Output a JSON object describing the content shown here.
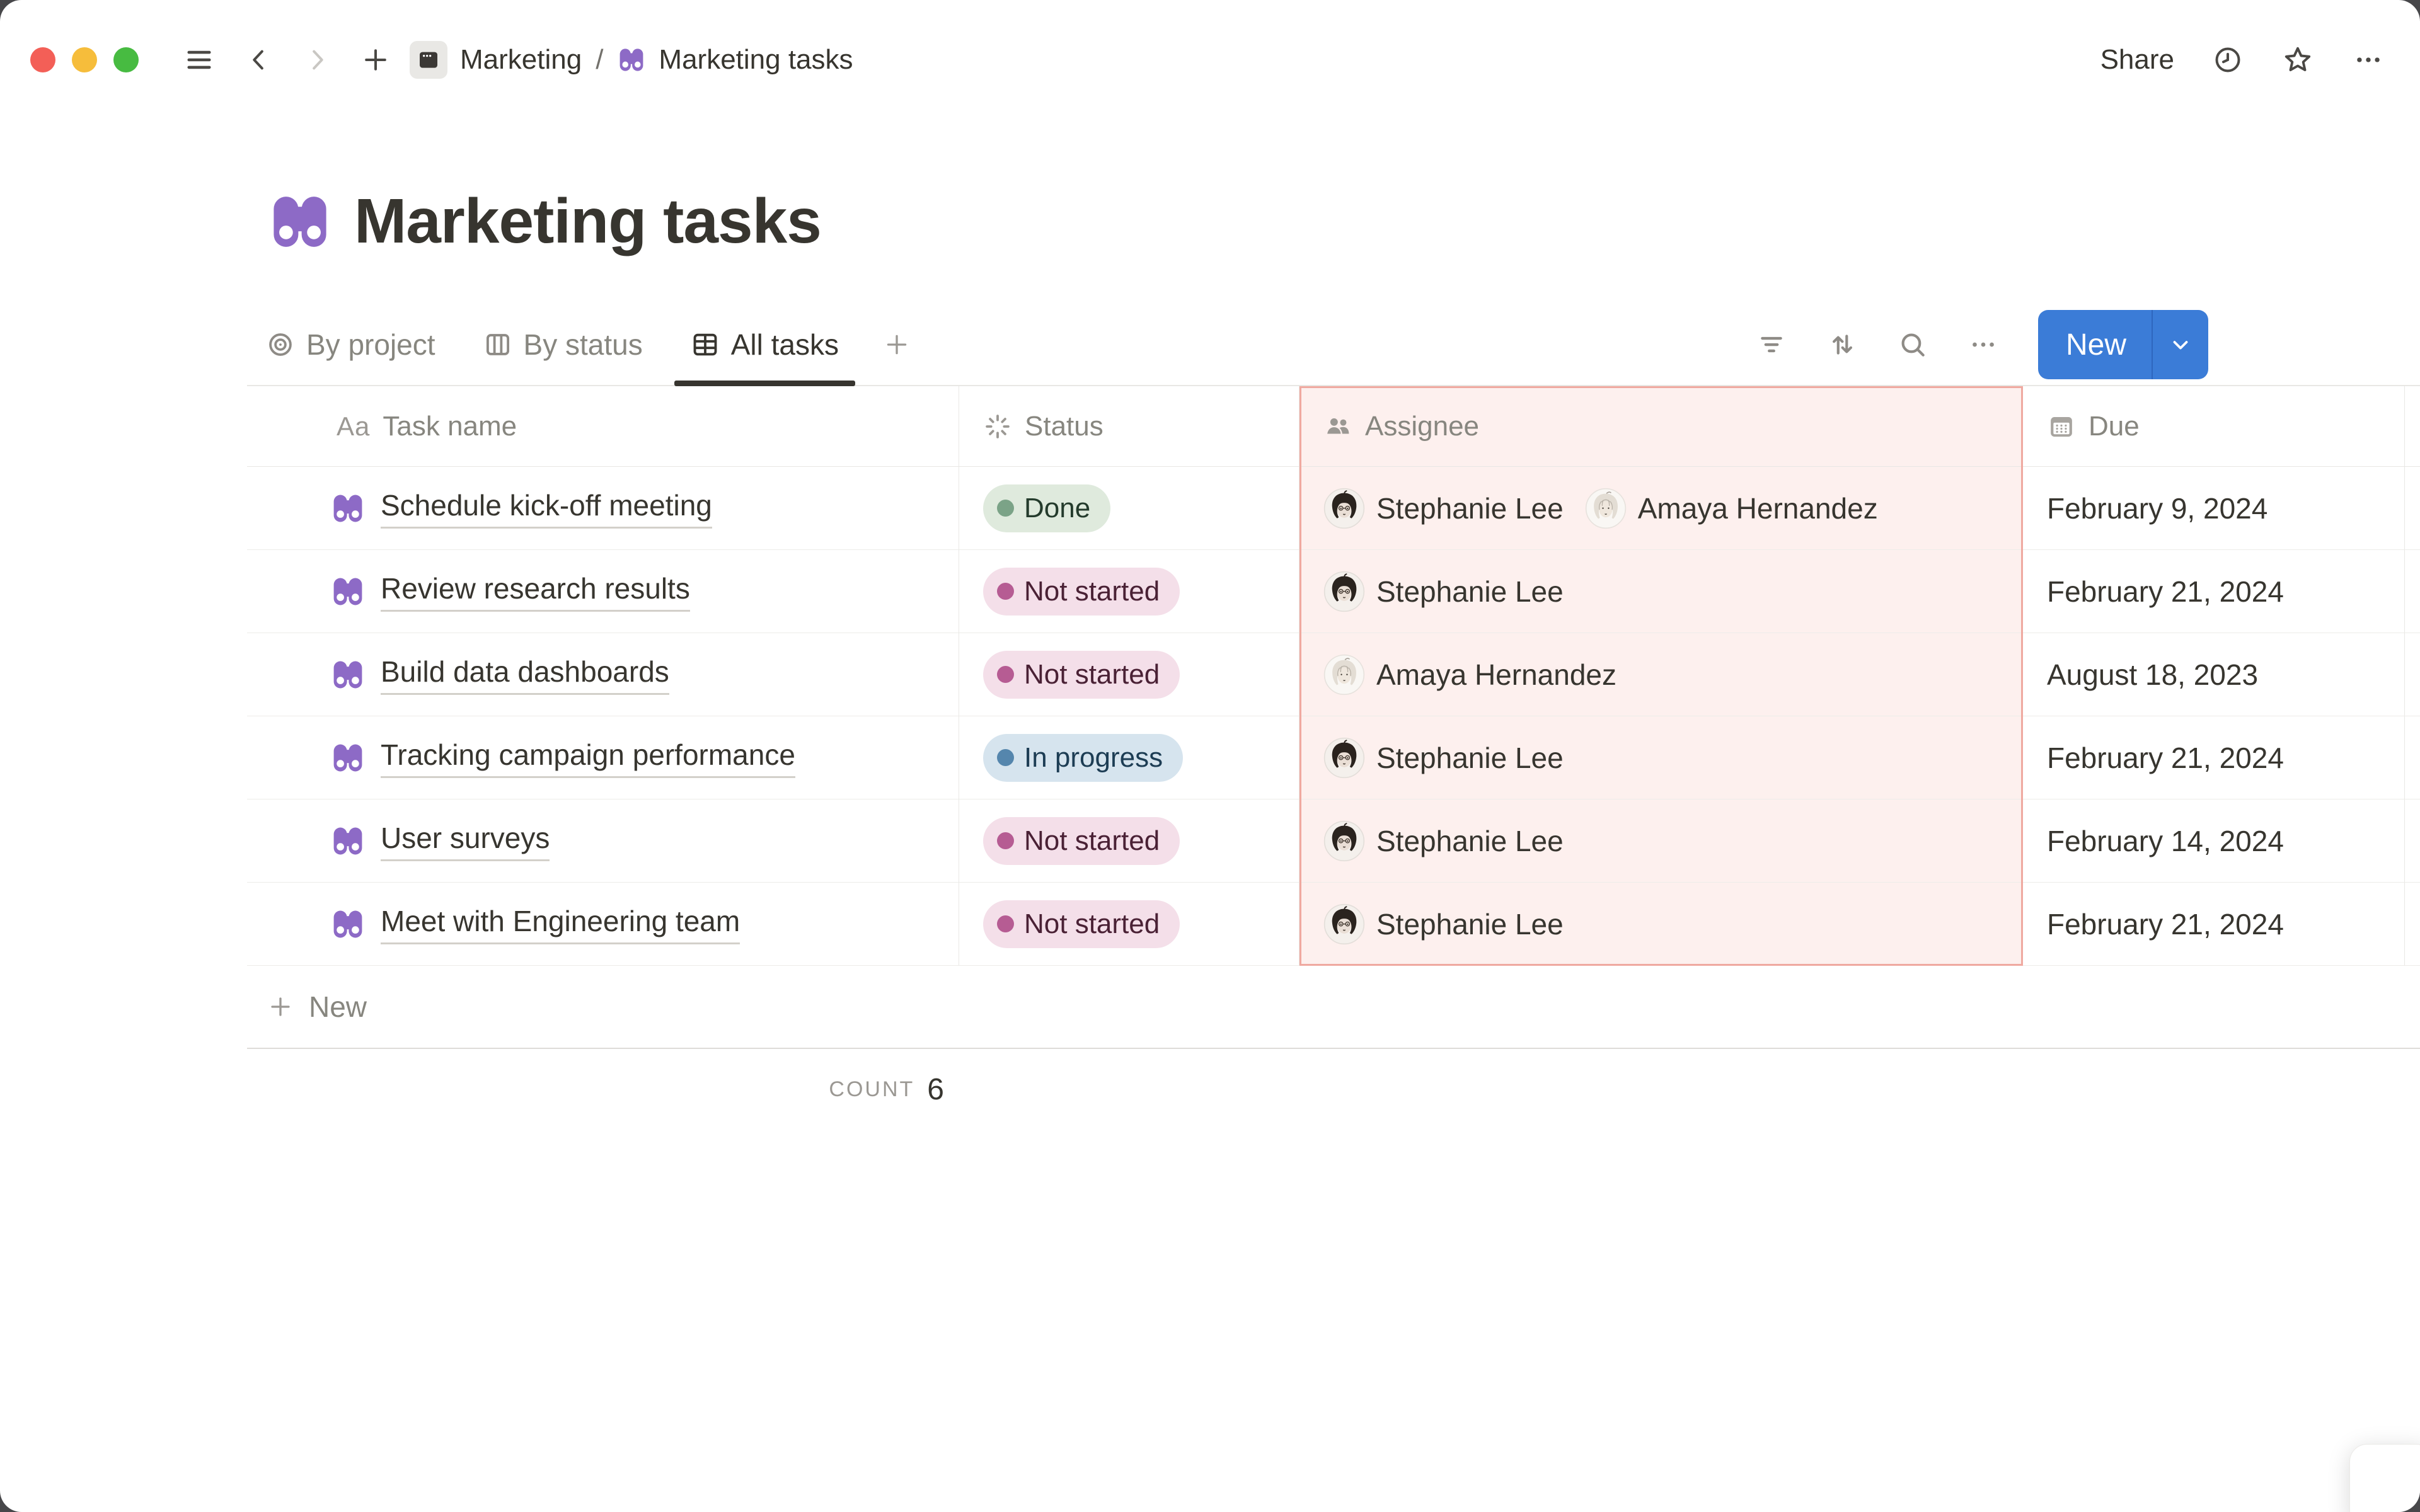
{
  "window_controls": {
    "close": "close",
    "minimize": "minimize",
    "zoom": "zoom"
  },
  "topbar": {
    "sidebar_toggle_icon": "hamburger-icon",
    "back_icon": "chevron-left-icon",
    "forward_icon": "chevron-right-icon",
    "new_page_icon": "plus-icon",
    "breadcrumb": {
      "parent": {
        "label": "Marketing",
        "icon": "projects-page-icon"
      },
      "separator": "/",
      "current": {
        "label": "Marketing tasks",
        "icon": "binoculars-icon"
      }
    },
    "share_label": "Share",
    "updates_icon": "clock-icon",
    "favorite_icon": "star-icon",
    "more_icon": "ellipsis-icon"
  },
  "page": {
    "icon": "binoculars-icon",
    "title": "Marketing tasks"
  },
  "views": {
    "tabs": [
      {
        "label": "By project",
        "icon": "target-icon",
        "active": false
      },
      {
        "label": "By status",
        "icon": "board-icon",
        "active": false
      },
      {
        "label": "All tasks",
        "icon": "table-icon",
        "active": true
      }
    ],
    "add_view_icon": "plus-icon"
  },
  "view_toolbar": {
    "filter_icon": "filter-icon",
    "sort_icon": "sort-icon",
    "search_icon": "search-icon",
    "more_icon": "ellipsis-icon",
    "new_button": {
      "label": "New",
      "caret_icon": "chevron-down-icon",
      "color": "#3B7CD7"
    }
  },
  "table": {
    "columns": [
      {
        "label": "Task name",
        "icon": "text-aa-icon",
        "highlighted": false
      },
      {
        "label": "Status",
        "icon": "status-spinner-icon",
        "highlighted": false
      },
      {
        "label": "Assignee",
        "icon": "people-icon",
        "highlighted": true
      },
      {
        "label": "Due",
        "icon": "calendar-icon",
        "highlighted": false
      }
    ],
    "rows": [
      {
        "task": "Schedule kick-off meeting",
        "status": "Done",
        "status_color": "green",
        "assignees": [
          {
            "name": "Stephanie Lee",
            "avatar": "stephanie"
          },
          {
            "name": "Amaya Hernandez",
            "avatar": "amaya"
          }
        ],
        "due": "February 9, 2024"
      },
      {
        "task": "Review research results",
        "status": "Not started",
        "status_color": "pink",
        "assignees": [
          {
            "name": "Stephanie Lee",
            "avatar": "stephanie"
          }
        ],
        "due": "February 21, 2024"
      },
      {
        "task": "Build data dashboards",
        "status": "Not started",
        "status_color": "pink",
        "assignees": [
          {
            "name": "Amaya Hernandez",
            "avatar": "amaya"
          }
        ],
        "due": "August 18, 2023"
      },
      {
        "task": "Tracking campaign performance",
        "status": "In progress",
        "status_color": "blue",
        "assignees": [
          {
            "name": "Stephanie Lee",
            "avatar": "stephanie"
          }
        ],
        "due": "February 21, 2024"
      },
      {
        "task": "User surveys",
        "status": "Not started",
        "status_color": "pink",
        "assignees": [
          {
            "name": "Stephanie Lee",
            "avatar": "stephanie"
          }
        ],
        "due": "February 14, 2024"
      },
      {
        "task": "Meet with Engineering team",
        "status": "Not started",
        "status_color": "pink",
        "assignees": [
          {
            "name": "Stephanie Lee",
            "avatar": "stephanie"
          }
        ],
        "due": "February 21, 2024"
      }
    ]
  },
  "footer": {
    "new_row_label": "New",
    "count_label": "COUNT",
    "count_value": "6"
  },
  "highlight": {
    "column": "Assignee",
    "background": "#FDF0EE",
    "border": "#EFA9A0"
  },
  "status_styles": {
    "green": {
      "bg": "#DFEADD",
      "dot": "#7BA387",
      "text": "#243B2C"
    },
    "pink": {
      "bg": "#F4DFE9",
      "dot": "#B65C93",
      "text": "#4A2135"
    },
    "blue": {
      "bg": "#D6E4EE",
      "dot": "#5586AD",
      "text": "#1D3D54"
    }
  },
  "accent_colors": {
    "new_button_blue": "#3B7CD7",
    "page_icon_purple": "#8D6AC6"
  }
}
